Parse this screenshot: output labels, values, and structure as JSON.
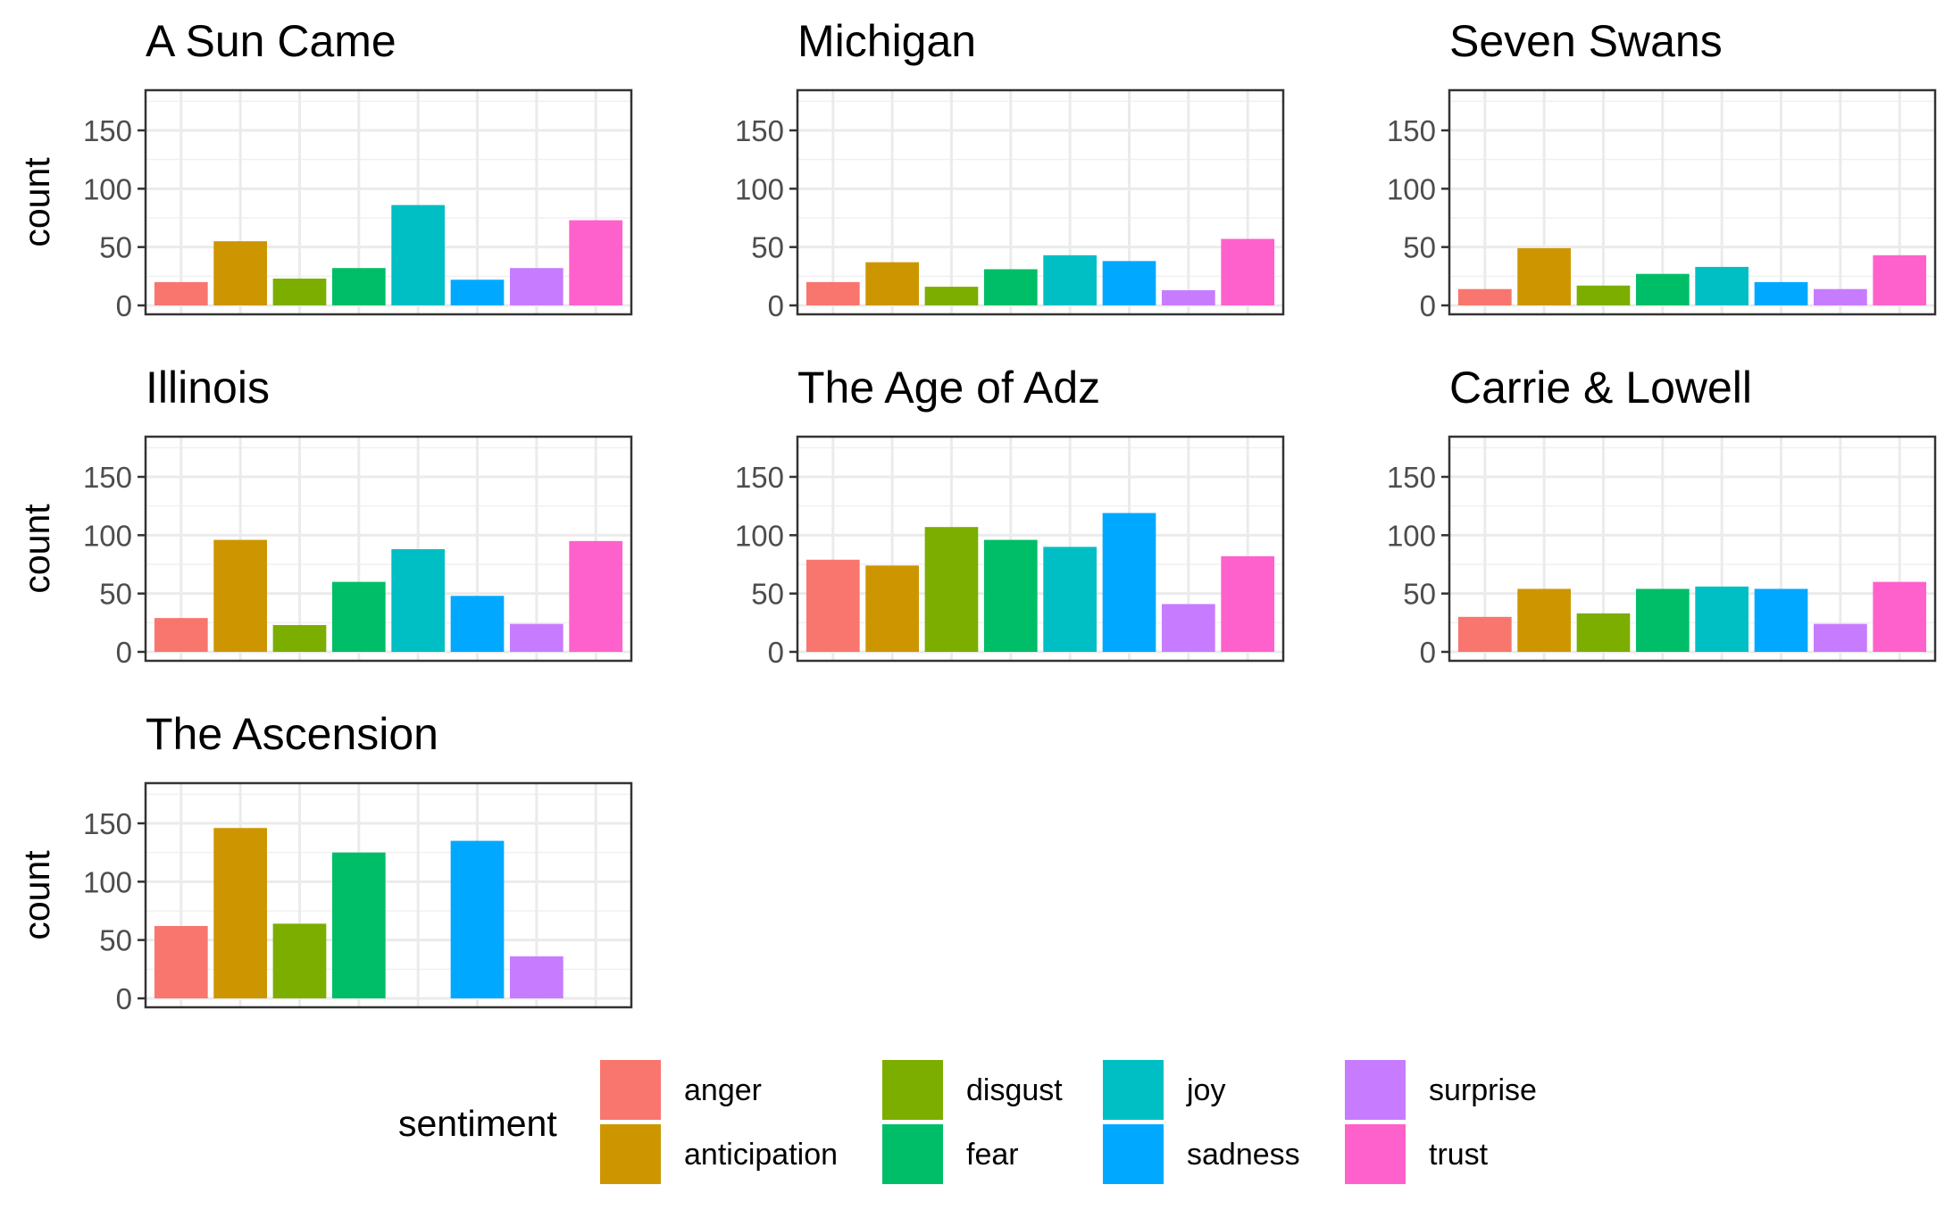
{
  "chart_data": {
    "type": "bar",
    "layout": "facet-wrap",
    "ylabel": "count",
    "ylim": [
      0,
      185
    ],
    "yticks": [
      0,
      50,
      100,
      150
    ],
    "grid": true,
    "legend": {
      "title": "sentiment",
      "position": "bottom",
      "items": [
        {
          "label": "anger",
          "color": "#F8766D"
        },
        {
          "label": "anticipation",
          "color": "#CD9600"
        },
        {
          "label": "disgust",
          "color": "#7CAE00"
        },
        {
          "label": "fear",
          "color": "#00BE67"
        },
        {
          "label": "joy",
          "color": "#00BFC4"
        },
        {
          "label": "sadness",
          "color": "#00A9FF"
        },
        {
          "label": "surprise",
          "color": "#C77CFF"
        },
        {
          "label": "trust",
          "color": "#FF61CC"
        }
      ]
    },
    "categories": [
      "anger",
      "anticipation",
      "disgust",
      "fear",
      "joy",
      "sadness",
      "surprise",
      "trust"
    ],
    "panels": [
      {
        "title": "A Sun Came",
        "values": [
          20,
          55,
          23,
          32,
          86,
          22,
          32,
          73
        ]
      },
      {
        "title": "Michigan",
        "values": [
          20,
          37,
          16,
          31,
          43,
          38,
          13,
          57
        ]
      },
      {
        "title": "Seven Swans",
        "values": [
          14,
          49,
          17,
          27,
          33,
          20,
          14,
          43
        ]
      },
      {
        "title": "Illinois",
        "values": [
          29,
          96,
          23,
          60,
          88,
          48,
          24,
          95
        ]
      },
      {
        "title": "The Age of Adz",
        "values": [
          79,
          74,
          107,
          96,
          90,
          119,
          41,
          82
        ]
      },
      {
        "title": "Carrie & Lowell",
        "values": [
          30,
          54,
          33,
          54,
          56,
          54,
          24,
          60
        ]
      },
      {
        "title": "The Ascension",
        "values": [
          62,
          146,
          64,
          125,
          null,
          135,
          36,
          null
        ]
      }
    ]
  }
}
